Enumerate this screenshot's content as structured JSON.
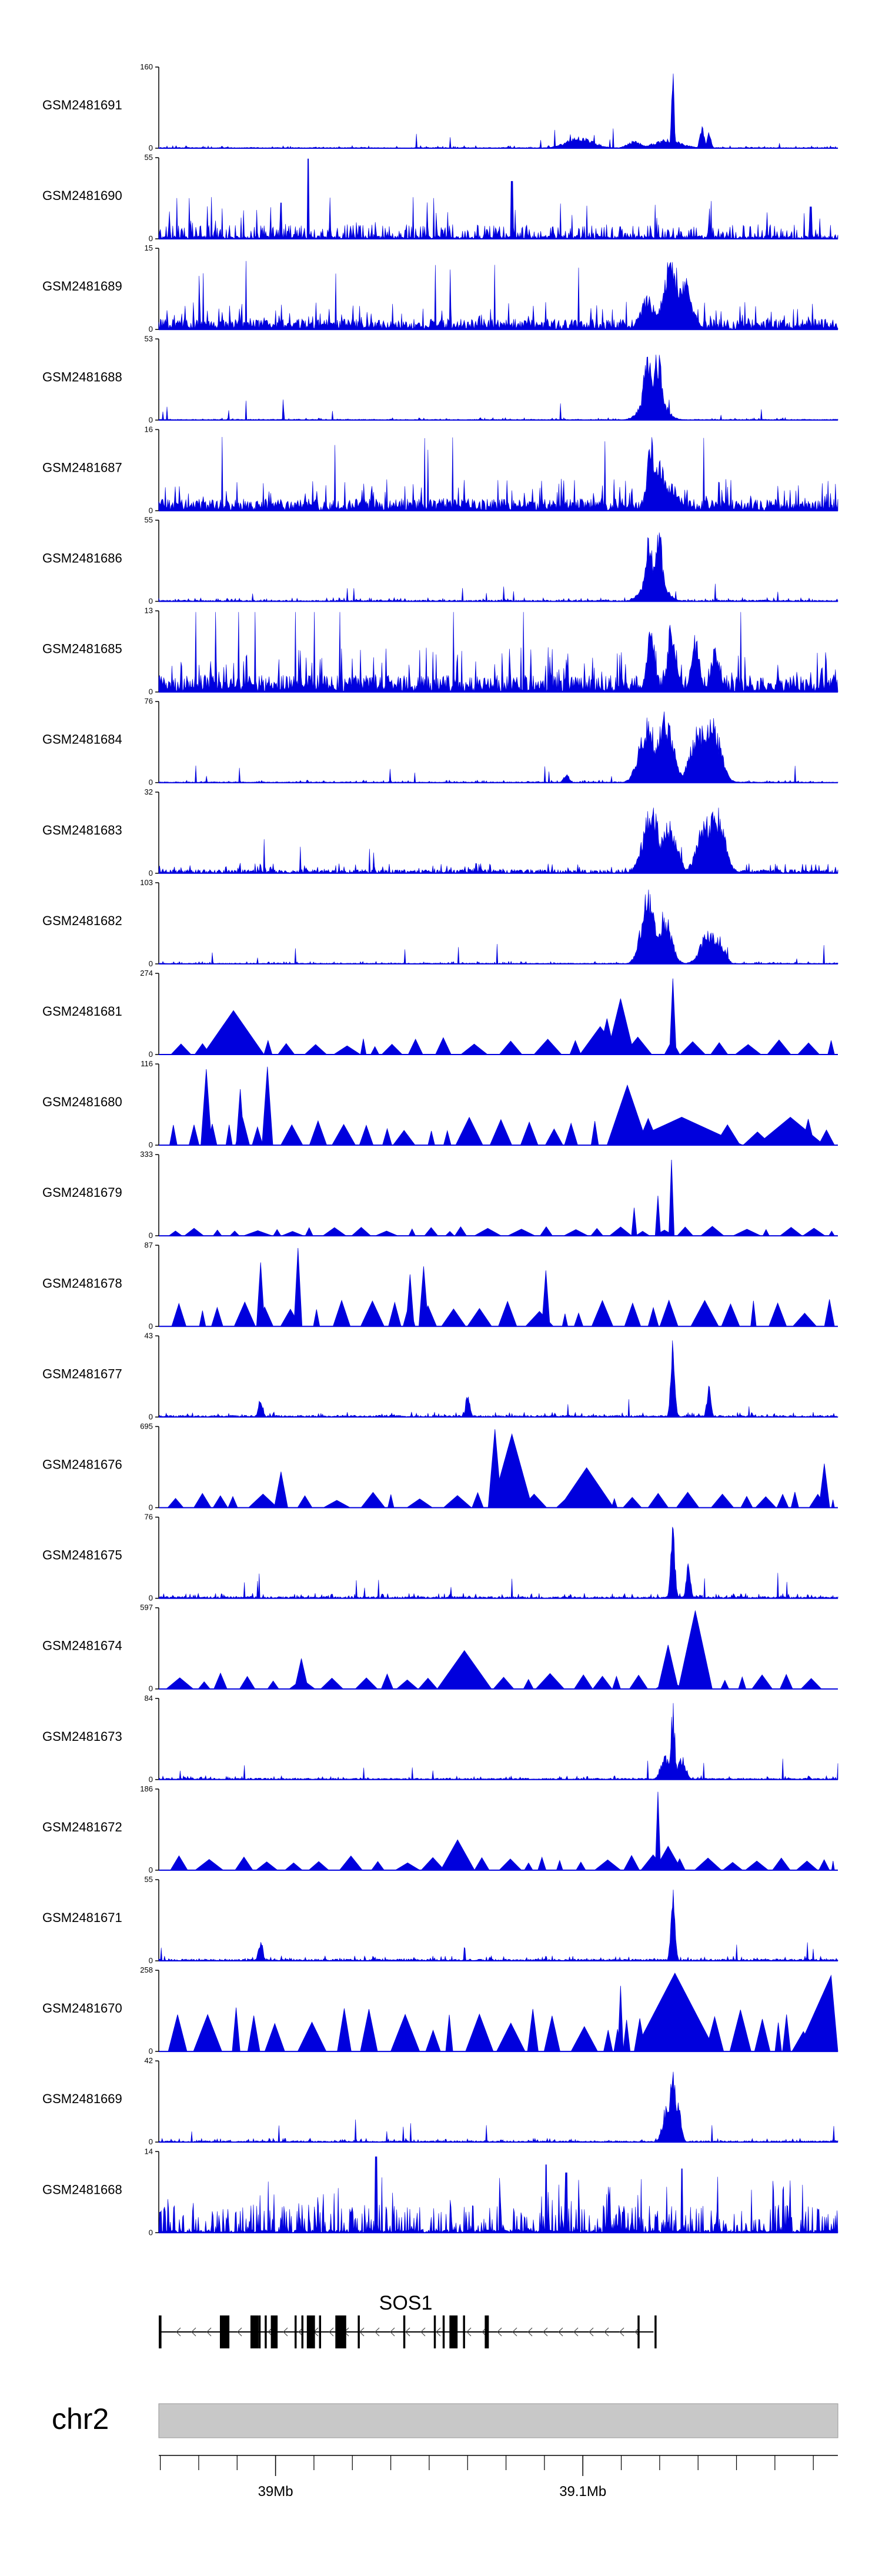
{
  "chart_data": {
    "type": "area",
    "title": "",
    "xlabel": "",
    "ylabel": "",
    "region": {
      "chromosome": "chr2",
      "start_mb": 38.962,
      "end_mb": 39.183
    },
    "axis_ticks": [
      {
        "pos_mb": 39.0,
        "label": "39Mb"
      },
      {
        "pos_mb": 39.1,
        "label": "39.1Mb"
      }
    ],
    "minor_tick_step_mb": 0.0125,
    "gene": {
      "name": "SOS1",
      "strand": "-",
      "start_mb": 38.962,
      "end_mb": 39.123
    },
    "tracks": [
      {
        "name": "GSM2481691",
        "ymax": "160",
        "style": "dense",
        "noise": 0.02,
        "peaks": [
          [
            0.75,
            0.02,
            0.12
          ],
          [
            0.62,
            0.02,
            0.15
          ],
          [
            0.7,
            0.01,
            0.1
          ],
          [
            0.757,
            0.002,
            1.0
          ],
          [
            0.8,
            0.003,
            0.35
          ],
          [
            0.81,
            0.003,
            0.2
          ]
        ]
      },
      {
        "name": "GSM2481690",
        "ymax": "55",
        "style": "sparse",
        "noise": 0.18,
        "spikes": [
          [
            0.22,
            1.0
          ],
          [
            0.52,
            0.72
          ],
          [
            0.18,
            0.45
          ],
          [
            0.96,
            0.4
          ]
        ],
        "peaks": []
      },
      {
        "name": "GSM2481689",
        "ymax": "15",
        "style": "dense",
        "noise": 0.22,
        "peaks": [
          [
            0.755,
            0.012,
            0.95
          ],
          [
            0.775,
            0.01,
            0.7
          ],
          [
            0.72,
            0.01,
            0.45
          ]
        ]
      },
      {
        "name": "GSM2481688",
        "ymax": "53",
        "style": "dense",
        "noise": 0.02,
        "peaks": [
          [
            0.72,
            0.006,
            0.95
          ],
          [
            0.735,
            0.006,
            0.92
          ],
          [
            0.728,
            0.015,
            0.45
          ]
        ]
      },
      {
        "name": "GSM2481687",
        "ymax": "16",
        "style": "dense",
        "noise": 0.25,
        "peaks": [
          [
            0.725,
            0.006,
            0.95
          ],
          [
            0.735,
            0.01,
            0.7
          ],
          [
            0.755,
            0.01,
            0.35
          ]
        ]
      },
      {
        "name": "GSM2481686",
        "ymax": "55",
        "style": "dense",
        "noise": 0.03,
        "peaks": [
          [
            0.722,
            0.006,
            0.92
          ],
          [
            0.736,
            0.006,
            0.95
          ],
          [
            0.729,
            0.015,
            0.4
          ]
        ]
      },
      {
        "name": "GSM2481685",
        "ymax": "13",
        "style": "dense",
        "noise": 0.35,
        "peaks": [
          [
            0.725,
            0.006,
            0.85
          ],
          [
            0.755,
            0.006,
            0.95
          ],
          [
            0.79,
            0.006,
            0.75
          ],
          [
            0.82,
            0.006,
            0.65
          ]
        ]
      },
      {
        "name": "GSM2481684",
        "ymax": "76",
        "style": "dense",
        "noise": 0.02,
        "peaks": [
          [
            0.72,
            0.012,
            0.85
          ],
          [
            0.745,
            0.012,
            0.95
          ],
          [
            0.795,
            0.012,
            0.78
          ],
          [
            0.815,
            0.012,
            0.85
          ],
          [
            0.6,
            0.004,
            0.12
          ]
        ]
      },
      {
        "name": "GSM2481683",
        "ymax": "32",
        "style": "dense",
        "noise": 0.08,
        "peaks": [
          [
            0.725,
            0.012,
            0.9
          ],
          [
            0.75,
            0.012,
            0.7
          ],
          [
            0.805,
            0.012,
            0.75
          ],
          [
            0.82,
            0.012,
            0.9
          ]
        ]
      },
      {
        "name": "GSM2481682",
        "ymax": "103",
        "style": "dense",
        "noise": 0.02,
        "peaks": [
          [
            0.72,
            0.01,
            0.95
          ],
          [
            0.745,
            0.01,
            0.7
          ],
          [
            0.81,
            0.012,
            0.45
          ],
          [
            0.825,
            0.008,
            0.35
          ]
        ]
      },
      {
        "name": "GSM2481681",
        "ymax": "274",
        "style": "triangles",
        "seed": 11,
        "tri_h": 0.22,
        "big": [
          [
            0.11,
            0.045,
            0.55
          ],
          [
            0.65,
            0.03,
            0.35
          ],
          [
            0.66,
            0.012,
            0.45
          ],
          [
            0.68,
            0.02,
            0.7
          ],
          [
            0.757,
            0.005,
            0.95
          ]
        ]
      },
      {
        "name": "GSM2481680",
        "ymax": "116",
        "style": "triangles",
        "seed": 7,
        "tri_h": 0.35,
        "big": [
          [
            0.07,
            0.008,
            0.95
          ],
          [
            0.16,
            0.008,
            0.98
          ],
          [
            0.12,
            0.006,
            0.7
          ],
          [
            0.69,
            0.03,
            0.75
          ],
          [
            0.77,
            0.09,
            0.35
          ],
          [
            0.93,
            0.05,
            0.35
          ]
        ]
      },
      {
        "name": "GSM2481679",
        "ymax": "333",
        "style": "triangles",
        "seed": 5,
        "tri_h": 0.12,
        "big": [
          [
            0.755,
            0.004,
            0.95
          ],
          [
            0.735,
            0.004,
            0.5
          ],
          [
            0.7,
            0.004,
            0.35
          ]
        ]
      },
      {
        "name": "GSM2481678",
        "ymax": "87",
        "style": "triangles",
        "seed": 13,
        "tri_h": 0.35,
        "big": [
          [
            0.205,
            0.006,
            0.98
          ],
          [
            0.15,
            0.006,
            0.8
          ],
          [
            0.39,
            0.007,
            0.75
          ],
          [
            0.57,
            0.006,
            0.7
          ],
          [
            0.37,
            0.006,
            0.65
          ]
        ]
      },
      {
        "name": "GSM2481677",
        "ymax": "43",
        "style": "dense",
        "noise": 0.04,
        "peaks": [
          [
            0.757,
            0.003,
            1.0
          ],
          [
            0.15,
            0.003,
            0.3
          ],
          [
            0.455,
            0.003,
            0.35
          ],
          [
            0.81,
            0.003,
            0.4
          ]
        ]
      },
      {
        "name": "GSM2481676",
        "ymax": "695",
        "style": "triangles",
        "seed": 21,
        "tri_h": 0.2,
        "big": [
          [
            0.495,
            0.01,
            0.98
          ],
          [
            0.52,
            0.03,
            0.92
          ],
          [
            0.63,
            0.04,
            0.5
          ],
          [
            0.18,
            0.01,
            0.45
          ],
          [
            0.98,
            0.008,
            0.55
          ]
        ]
      },
      {
        "name": "GSM2481675",
        "ymax": "76",
        "style": "dense",
        "noise": 0.04,
        "peaks": [
          [
            0.757,
            0.003,
            0.98
          ],
          [
            0.78,
            0.003,
            0.6
          ]
        ]
      },
      {
        "name": "GSM2481674",
        "ymax": "597",
        "style": "triangles",
        "seed": 17,
        "tri_h": 0.2,
        "big": [
          [
            0.79,
            0.025,
            0.98
          ],
          [
            0.75,
            0.015,
            0.55
          ],
          [
            0.45,
            0.04,
            0.48
          ],
          [
            0.21,
            0.01,
            0.38
          ]
        ]
      },
      {
        "name": "GSM2481673",
        "ymax": "84",
        "style": "dense",
        "noise": 0.03,
        "peaks": [
          [
            0.757,
            0.003,
            0.98
          ],
          [
            0.745,
            0.006,
            0.35
          ],
          [
            0.77,
            0.006,
            0.3
          ]
        ]
      },
      {
        "name": "GSM2481672",
        "ymax": "186",
        "style": "triangles",
        "seed": 29,
        "tri_h": 0.2,
        "big": [
          [
            0.735,
            0.004,
            0.98
          ],
          [
            0.44,
            0.025,
            0.38
          ],
          [
            0.75,
            0.02,
            0.3
          ]
        ]
      },
      {
        "name": "GSM2481671",
        "ymax": "55",
        "style": "dense",
        "noise": 0.04,
        "peaks": [
          [
            0.757,
            0.003,
            0.98
          ],
          [
            0.15,
            0.003,
            0.3
          ]
        ]
      },
      {
        "name": "GSM2481670",
        "ymax": "258",
        "style": "triangles",
        "seed": 3,
        "tri_h": 0.55,
        "big": [
          [
            0.76,
            0.06,
            0.98
          ],
          [
            0.99,
            0.05,
            0.95
          ],
          [
            0.68,
            0.004,
            0.82
          ]
        ]
      },
      {
        "name": "GSM2481669",
        "ymax": "42",
        "style": "dense",
        "noise": 0.03,
        "peaks": [
          [
            0.757,
            0.004,
            0.98
          ],
          [
            0.748,
            0.006,
            0.5
          ],
          [
            0.765,
            0.004,
            0.6
          ]
        ]
      },
      {
        "name": "GSM2481668",
        "ymax": "14",
        "style": "sparse",
        "noise": 0.35,
        "spikes": [
          [
            0.32,
            0.95
          ],
          [
            0.57,
            0.85
          ],
          [
            0.6,
            0.75
          ],
          [
            0.77,
            0.8
          ]
        ],
        "peaks": []
      }
    ]
  },
  "colors": {
    "signal": "#0000dd",
    "axis": "#000000",
    "ideogram": "#c8c8c8",
    "gene": "#000000"
  }
}
